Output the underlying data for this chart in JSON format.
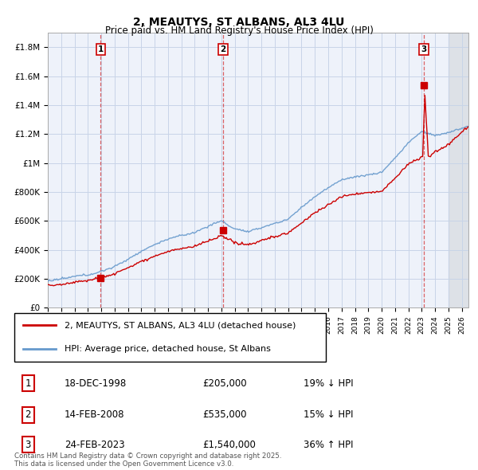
{
  "title": "2, MEAUTYS, ST ALBANS, AL3 4LU",
  "subtitle": "Price paid vs. HM Land Registry's House Price Index (HPI)",
  "ylabel_ticks": [
    "£0",
    "£200K",
    "£400K",
    "£600K",
    "£800K",
    "£1M",
    "£1.2M",
    "£1.4M",
    "£1.6M",
    "£1.8M"
  ],
  "ytick_values": [
    0,
    200000,
    400000,
    600000,
    800000,
    1000000,
    1200000,
    1400000,
    1600000,
    1800000
  ],
  "ylim": [
    0,
    1900000
  ],
  "xlim_start": 1995.0,
  "xlim_end": 2026.5,
  "sale_years": [
    1998.96,
    2008.12,
    2023.15
  ],
  "sale_prices": [
    205000,
    535000,
    1540000
  ],
  "sale_labels": [
    "1",
    "2",
    "3"
  ],
  "vline_color": "#cc0000",
  "sale_marker_color": "#cc0000",
  "hpi_line_color": "#6699cc",
  "price_line_color": "#cc0000",
  "grid_color": "#c8d4e8",
  "background_color": "#eef2fa",
  "legend_label_red": "2, MEAUTYS, ST ALBANS, AL3 4LU (detached house)",
  "legend_label_blue": "HPI: Average price, detached house, St Albans",
  "table_entries": [
    {
      "num": "1",
      "date": "18-DEC-1998",
      "price": "£205,000",
      "hpi": "19% ↓ HPI"
    },
    {
      "num": "2",
      "date": "14-FEB-2008",
      "price": "£535,000",
      "hpi": "15% ↓ HPI"
    },
    {
      "num": "3",
      "date": "24-FEB-2023",
      "price": "£1,540,000",
      "hpi": "36% ↑ HPI"
    }
  ],
  "footnote": "Contains HM Land Registry data © Crown copyright and database right 2025.\nThis data is licensed under the Open Government Licence v3.0."
}
